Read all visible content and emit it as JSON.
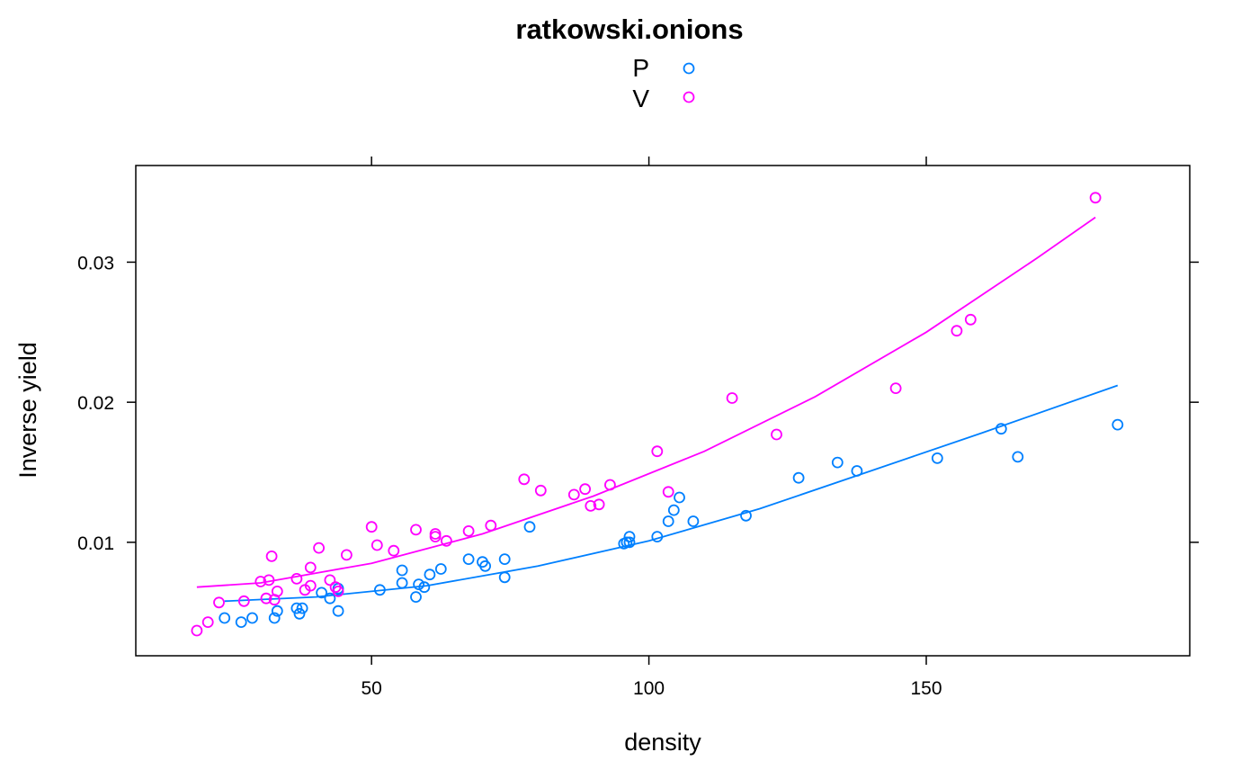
{
  "chart_data": {
    "type": "scatter",
    "title": "ratkowski.onions",
    "xlabel": "density",
    "ylabel": "Inverse yield",
    "xlim": [
      7.5,
      197.5
    ],
    "ylim": [
      0.0019,
      0.0369
    ],
    "xticks": [
      50,
      100,
      150
    ],
    "yticks": [
      0.01,
      0.02,
      0.03
    ],
    "xtick_labels": [
      "50",
      "100",
      "150"
    ],
    "ytick_labels": [
      "0.01",
      "0.02",
      "0.03"
    ],
    "legend_position": "top",
    "series": [
      {
        "name": "P",
        "color": "#0080ff",
        "points": [
          [
            23.5,
            0.0046
          ],
          [
            26.5,
            0.0043
          ],
          [
            28.5,
            0.0046
          ],
          [
            32.5,
            0.0046
          ],
          [
            33,
            0.0051
          ],
          [
            36.5,
            0.0053
          ],
          [
            37,
            0.0049
          ],
          [
            37.5,
            0.0053
          ],
          [
            41,
            0.0064
          ],
          [
            42.5,
            0.006
          ],
          [
            44,
            0.0067
          ],
          [
            44,
            0.0051
          ],
          [
            51.5,
            0.0066
          ],
          [
            55.5,
            0.008
          ],
          [
            55.5,
            0.0071
          ],
          [
            58,
            0.0061
          ],
          [
            58.5,
            0.007
          ],
          [
            59.5,
            0.0068
          ],
          [
            60.5,
            0.0077
          ],
          [
            62.5,
            0.0081
          ],
          [
            67.5,
            0.0088
          ],
          [
            70,
            0.0086
          ],
          [
            70.5,
            0.0083
          ],
          [
            74,
            0.0088
          ],
          [
            74,
            0.0075
          ],
          [
            78.5,
            0.0111
          ],
          [
            95.5,
            0.0099
          ],
          [
            96,
            0.01
          ],
          [
            96.5,
            0.0104
          ],
          [
            96.5,
            0.01
          ],
          [
            101.5,
            0.0104
          ],
          [
            103.5,
            0.0115
          ],
          [
            104.5,
            0.0123
          ],
          [
            105.5,
            0.0132
          ],
          [
            108,
            0.0115
          ],
          [
            117.5,
            0.0119
          ],
          [
            127,
            0.0146
          ],
          [
            134,
            0.0157
          ],
          [
            137.5,
            0.0151
          ],
          [
            152,
            0.016
          ],
          [
            163.5,
            0.0181
          ],
          [
            166.5,
            0.0161
          ],
          [
            184.5,
            0.0184
          ]
        ],
        "fit": [
          [
            23.5,
            0.0058
          ],
          [
            40,
            0.0061
          ],
          [
            60,
            0.0069
          ],
          [
            80,
            0.0083
          ],
          [
            100,
            0.0101
          ],
          [
            120,
            0.0124
          ],
          [
            140,
            0.0151
          ],
          [
            160,
            0.0178
          ],
          [
            184.5,
            0.0212
          ]
        ]
      },
      {
        "name": "V",
        "color": "#ff00ff",
        "points": [
          [
            18.5,
            0.0037
          ],
          [
            20.5,
            0.0043
          ],
          [
            22.5,
            0.0057
          ],
          [
            27,
            0.0058
          ],
          [
            30,
            0.0072
          ],
          [
            31,
            0.006
          ],
          [
            31.5,
            0.0073
          ],
          [
            32,
            0.009
          ],
          [
            32.5,
            0.0059
          ],
          [
            33,
            0.0065
          ],
          [
            36.5,
            0.0074
          ],
          [
            38,
            0.0066
          ],
          [
            39,
            0.0082
          ],
          [
            39,
            0.0069
          ],
          [
            40.5,
            0.0096
          ],
          [
            42.5,
            0.0073
          ],
          [
            43.5,
            0.0068
          ],
          [
            44,
            0.0065
          ],
          [
            45.5,
            0.0091
          ],
          [
            50,
            0.0111
          ],
          [
            51,
            0.0098
          ],
          [
            54,
            0.0094
          ],
          [
            58,
            0.0109
          ],
          [
            61.5,
            0.0106
          ],
          [
            61.5,
            0.0104
          ],
          [
            63.5,
            0.0101
          ],
          [
            67.5,
            0.0108
          ],
          [
            71.5,
            0.0112
          ],
          [
            77.5,
            0.0145
          ],
          [
            80.5,
            0.0137
          ],
          [
            86.5,
            0.0134
          ],
          [
            88.5,
            0.0138
          ],
          [
            89.5,
            0.0126
          ],
          [
            91,
            0.0127
          ],
          [
            93,
            0.0141
          ],
          [
            101.5,
            0.0165
          ],
          [
            103.5,
            0.0136
          ],
          [
            115,
            0.0203
          ],
          [
            123,
            0.0177
          ],
          [
            144.5,
            0.021
          ],
          [
            155.5,
            0.0251
          ],
          [
            158,
            0.0259
          ],
          [
            180.5,
            0.0346
          ]
        ],
        "fit": [
          [
            18.5,
            0.0068
          ],
          [
            30,
            0.0071
          ],
          [
            50,
            0.0085
          ],
          [
            70,
            0.0106
          ],
          [
            90,
            0.0133
          ],
          [
            110,
            0.0165
          ],
          [
            130,
            0.0204
          ],
          [
            150,
            0.025
          ],
          [
            170,
            0.0303
          ],
          [
            180.5,
            0.0332
          ]
        ]
      }
    ]
  }
}
